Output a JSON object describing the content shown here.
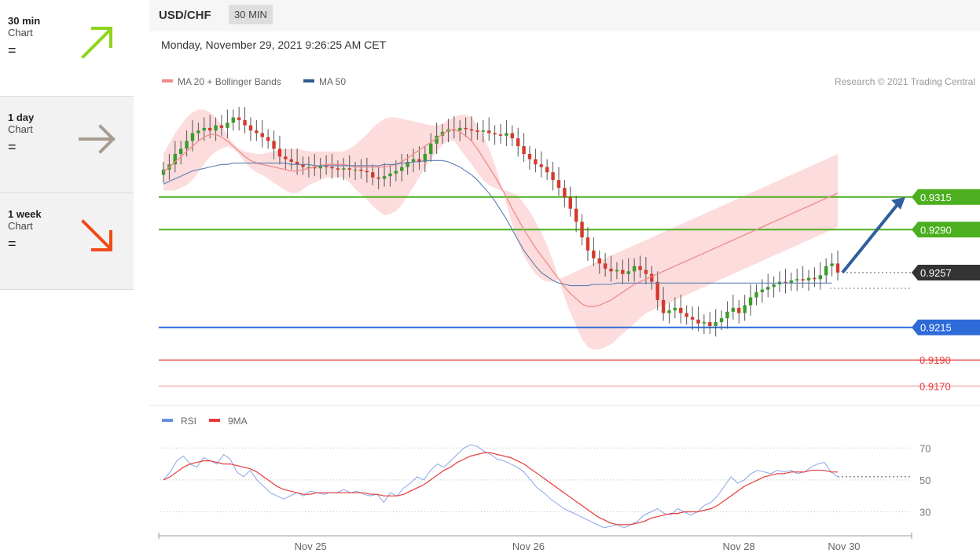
{
  "sidebar": {
    "items": [
      {
        "title": "30 min",
        "sub": "Chart",
        "eq": "=",
        "arrow": "up",
        "color": "#8fd41c"
      },
      {
        "title": "1 day",
        "sub": "Chart",
        "eq": "=",
        "arrow": "right",
        "color": "#a89c91"
      },
      {
        "title": "1 week",
        "sub": "Chart",
        "eq": "=",
        "arrow": "down",
        "color": "#f04a1a"
      }
    ]
  },
  "header": {
    "symbol": "USD/CHF",
    "timeframe": "30 MIN",
    "date": "Monday, November 29, 2021 9:26:25 AM CET"
  },
  "chart_data": {
    "type": "candlestick",
    "legend": [
      {
        "label": "MA 20 + Bollinger Bands",
        "color": "#f08c8c"
      },
      {
        "label": "MA 50",
        "color": "#2c5a8e"
      }
    ],
    "credit": "Research © 2021 Trading Central",
    "ylim": [
      0.916,
      0.9395
    ],
    "x_ticks": [
      {
        "label": "Nov 25",
        "pos": 0.2
      },
      {
        "label": "Nov 26",
        "pos": 0.49
      },
      {
        "label": "Nov 28",
        "pos": 0.77
      },
      {
        "label": "Nov 30",
        "pos": 0.91
      }
    ],
    "levels": [
      {
        "label": "0.9315",
        "value": 0.9315,
        "style": "resistance",
        "color": "#4caf1f"
      },
      {
        "label": "0.9290",
        "value": 0.929,
        "style": "resistance",
        "color": "#4caf1f"
      },
      {
        "label": "0.9257",
        "value": 0.9257,
        "style": "current",
        "color": "#333333"
      },
      {
        "label": "0.9215",
        "value": 0.9215,
        "style": "support",
        "color": "#2f6bd8"
      },
      {
        "label": "0.9190",
        "value": 0.919,
        "style": "minor",
        "color": "#e63a3a"
      },
      {
        "label": "0.9170",
        "value": 0.917,
        "style": "minor",
        "color": "#f2a3a3"
      }
    ],
    "target_arrow": {
      "from": 0.9257,
      "to": 0.9315,
      "color": "#2f5f9e"
    },
    "closes": [
      0.9336,
      0.934,
      0.9348,
      0.9352,
      0.9358,
      0.9364,
      0.9366,
      0.9368,
      0.9366,
      0.937,
      0.9368,
      0.9372,
      0.9376,
      0.9374,
      0.937,
      0.9366,
      0.9364,
      0.9361,
      0.9358,
      0.9352,
      0.9346,
      0.9344,
      0.9342,
      0.934,
      0.9338,
      0.9338,
      0.9337,
      0.9339,
      0.9338,
      0.9337,
      0.9336,
      0.9337,
      0.9336,
      0.9336,
      0.9335,
      0.9334,
      0.933,
      0.9329,
      0.9331,
      0.9333,
      0.9335,
      0.9338,
      0.9342,
      0.9344,
      0.9342,
      0.9348,
      0.9356,
      0.9362,
      0.9365,
      0.9367,
      0.9366,
      0.9368,
      0.9367,
      0.9366,
      0.9365,
      0.9366,
      0.9364,
      0.9363,
      0.9362,
      0.9364,
      0.936,
      0.9354,
      0.9348,
      0.9344,
      0.934,
      0.9338,
      0.9334,
      0.9328,
      0.9322,
      0.9315,
      0.9306,
      0.9296,
      0.9284,
      0.9274,
      0.9268,
      0.9264,
      0.926,
      0.9258,
      0.9259,
      0.9256,
      0.9258,
      0.9262,
      0.9259,
      0.9256,
      0.925,
      0.9236,
      0.9226,
      0.9228,
      0.923,
      0.9226,
      0.9223,
      0.9221,
      0.9218,
      0.9219,
      0.9216,
      0.9219,
      0.9222,
      0.9227,
      0.923,
      0.9226,
      0.9232,
      0.9238,
      0.9242,
      0.9244,
      0.9246,
      0.9248,
      0.925,
      0.9249,
      0.9251,
      0.9252,
      0.9251,
      0.9253,
      0.9252,
      0.9255,
      0.9262,
      0.9264,
      0.9257
    ],
    "ma20": [
      0.9334,
      0.9338,
      0.9342,
      0.9346,
      0.935,
      0.9354,
      0.9358,
      0.9361,
      0.9363,
      0.9363,
      0.9361,
      0.9358,
      0.9354,
      0.935,
      0.9346,
      0.9343,
      0.9341,
      0.934,
      0.9339,
      0.9338,
      0.9337,
      0.9336,
      0.9335,
      0.9335,
      0.9336,
      0.9337,
      0.9338,
      0.9339,
      0.934,
      0.934,
      0.934,
      0.934,
      0.9339,
      0.9338,
      0.9338,
      0.9338,
      0.9338,
      0.9338,
      0.9338,
      0.9339,
      0.934,
      0.9342,
      0.9345,
      0.9348,
      0.9351,
      0.9354,
      0.9357,
      0.936,
      0.9363,
      0.9366,
      0.9367,
      0.9365,
      0.9362,
      0.9358,
      0.9352,
      0.9345,
      0.9338,
      0.9331,
      0.9323,
      0.9315,
      0.9306,
      0.9298,
      0.929,
      0.9283,
      0.9276,
      0.927,
      0.9264,
      0.9258,
      0.9252,
      0.9246,
      0.9241,
      0.9237,
      0.9233,
      0.9231,
      0.9231,
      0.9232,
      0.9234,
      0.9236,
      0.9239,
      0.9242,
      0.9245,
      0.9248,
      0.925,
      0.9252,
      0.9254,
      0.9256,
      0.9258,
      0.926,
      0.9262,
      0.9264,
      0.9266,
      0.9268,
      0.927,
      0.9272,
      0.9274,
      0.9276,
      0.9278,
      0.928,
      0.9282,
      0.9284,
      0.9286,
      0.9288,
      0.929,
      0.9292,
      0.9294,
      0.9296,
      0.9298,
      0.93,
      0.9302,
      0.9304,
      0.9306,
      0.9308,
      0.931,
      0.9312,
      0.9314,
      0.9316,
      0.9318
    ],
    "bb_upper": [
      0.9348,
      0.9356,
      0.9364,
      0.937,
      0.9376,
      0.938,
      0.9382,
      0.9382,
      0.938,
      0.9376,
      0.937,
      0.9362,
      0.9356,
      0.9352,
      0.935,
      0.9349,
      0.9348,
      0.9348,
      0.9349,
      0.935,
      0.9351,
      0.9352,
      0.9352,
      0.9352,
      0.9351,
      0.935,
      0.935,
      0.935,
      0.935,
      0.935,
      0.935,
      0.935,
      0.9352,
      0.9355,
      0.9359,
      0.9363,
      0.9368,
      0.9372,
      0.9375,
      0.9376,
      0.9376,
      0.9375,
      0.9374,
      0.9373,
      0.9372,
      0.9371,
      0.937,
      0.937,
      0.9371,
      0.9374,
      0.9376,
      0.9378,
      0.9378,
      0.9376,
      0.937,
      0.9362,
      0.9352,
      0.934,
      0.9326,
      0.931,
      0.9294,
      0.928,
      0.927,
      0.9262,
      0.9256,
      0.9252,
      0.925,
      0.925,
      0.9252,
      0.9254,
      0.9256,
      0.9258,
      0.926,
      0.9262,
      0.9264,
      0.9266,
      0.9268,
      0.927,
      0.9272,
      0.9274,
      0.9276,
      0.9278,
      0.928,
      0.9282,
      0.9284,
      0.9286,
      0.9288,
      0.929,
      0.9292,
      0.9294,
      0.9296,
      0.9298,
      0.93,
      0.9302,
      0.9304,
      0.9306,
      0.9308,
      0.931,
      0.9312,
      0.9314,
      0.9316,
      0.9318,
      0.932,
      0.9322,
      0.9324,
      0.9326,
      0.9328,
      0.933,
      0.9332,
      0.9334,
      0.9336,
      0.9338,
      0.934,
      0.9342,
      0.9344,
      0.9346,
      0.9348
    ],
    "bb_lower": [
      0.932,
      0.932,
      0.932,
      0.9322,
      0.9324,
      0.9328,
      0.9334,
      0.934,
      0.9346,
      0.935,
      0.9352,
      0.9354,
      0.9352,
      0.9348,
      0.9342,
      0.9337,
      0.9334,
      0.9332,
      0.9329,
      0.9326,
      0.9323,
      0.932,
      0.9318,
      0.9318,
      0.9321,
      0.9324,
      0.9326,
      0.9328,
      0.933,
      0.933,
      0.933,
      0.933,
      0.9326,
      0.9321,
      0.9317,
      0.9313,
      0.9308,
      0.9304,
      0.9301,
      0.9302,
      0.9304,
      0.9309,
      0.9316,
      0.9323,
      0.933,
      0.9337,
      0.9344,
      0.935,
      0.9355,
      0.9358,
      0.9358,
      0.9352,
      0.9346,
      0.934,
      0.9334,
      0.9328,
      0.9324,
      0.9322,
      0.932,
      0.932,
      0.9318,
      0.9316,
      0.931,
      0.9304,
      0.9296,
      0.9288,
      0.9278,
      0.9266,
      0.9252,
      0.9238,
      0.9226,
      0.9216,
      0.9206,
      0.92,
      0.9198,
      0.9198,
      0.92,
      0.9202,
      0.9206,
      0.921,
      0.9214,
      0.9218,
      0.9222,
      0.9226,
      0.9228,
      0.923,
      0.9232,
      0.9234,
      0.9236,
      0.9238,
      0.924,
      0.9242,
      0.9244,
      0.9246,
      0.9248,
      0.925,
      0.9252,
      0.9254,
      0.9256,
      0.9258,
      0.926,
      0.9262,
      0.9264,
      0.9266,
      0.9268,
      0.927,
      0.9272,
      0.9274,
      0.9276,
      0.9278,
      0.928,
      0.9282,
      0.9284,
      0.9286,
      0.9288,
      0.929,
      0.9292
    ],
    "ma50": [
      0.9325,
      0.9327,
      0.9329,
      0.9331,
      0.9333,
      0.9335,
      0.9336,
      0.9337,
      0.9338,
      0.9339,
      0.934,
      0.934,
      0.9341,
      0.9341,
      0.9341,
      0.9341,
      0.9341,
      0.9341,
      0.9341,
      0.9341,
      0.9341,
      0.9341,
      0.934,
      0.934,
      0.934,
      0.934,
      0.9339,
      0.9339,
      0.9339,
      0.9339,
      0.9339,
      0.9339,
      0.9339,
      0.9339,
      0.9339,
      0.9339,
      0.9339,
      0.9339,
      0.934,
      0.934,
      0.934,
      0.9341,
      0.9341,
      0.9342,
      0.9342,
      0.9343,
      0.9343,
      0.9343,
      0.9343,
      0.9342,
      0.934,
      0.9338,
      0.9335,
      0.9332,
      0.9328,
      0.9323,
      0.9318,
      0.9312,
      0.9305,
      0.9298,
      0.929,
      0.9282,
      0.9274,
      0.9268,
      0.9262,
      0.9257,
      0.9254,
      0.9251,
      0.9249,
      0.9248,
      0.9247,
      0.9247,
      0.9247,
      0.9247,
      0.9248,
      0.9248,
      0.9248,
      0.9248,
      0.9249,
      0.9249,
      0.9249,
      0.9249,
      0.9249,
      0.9249,
      0.9249,
      0.9249,
      0.9249,
      0.9249,
      0.9249,
      0.9249,
      0.9249,
      0.9249,
      0.9249,
      0.9249,
      0.9249,
      0.9249,
      0.9249,
      0.9249,
      0.9249,
      0.9249,
      0.9249,
      0.9249,
      0.9249,
      0.9249,
      0.9249,
      0.9249,
      0.9249,
      0.9249,
      0.9249,
      0.9249,
      0.9249,
      0.9249,
      0.9249,
      0.9249,
      0.9249,
      0.9249
    ],
    "rsi_panel": {
      "legend": [
        {
          "label": "RSI",
          "color": "#6a8fe0"
        },
        {
          "label": "9MA",
          "color": "#e63a3a"
        }
      ],
      "ylim": [
        15,
        80
      ],
      "gridlines": [
        70,
        50,
        30
      ],
      "y_tick_labels": [
        "70",
        "50",
        "30"
      ],
      "rsi": [
        50,
        55,
        62,
        65,
        60,
        58,
        64,
        62,
        60,
        66,
        63,
        55,
        52,
        56,
        50,
        46,
        42,
        40,
        38,
        40,
        42,
        40,
        43,
        42,
        41,
        42,
        42,
        44,
        42,
        43,
        41,
        40,
        41,
        36,
        42,
        40,
        45,
        48,
        52,
        50,
        56,
        60,
        58,
        62,
        66,
        70,
        72,
        71,
        68,
        66,
        63,
        62,
        60,
        58,
        55,
        50,
        45,
        42,
        38,
        35,
        32,
        30,
        28,
        26,
        24,
        22,
        20,
        21,
        22,
        20,
        22,
        24,
        28,
        30,
        32,
        29,
        28,
        32,
        30,
        28,
        30,
        34,
        36,
        40,
        46,
        52,
        48,
        50,
        54,
        56,
        55,
        54,
        56,
        55,
        56,
        54,
        55,
        58,
        60,
        61,
        55,
        52
      ],
      "rsi_ma": [
        50,
        52,
        55,
        58,
        60,
        61,
        62,
        62,
        61,
        60,
        60,
        59,
        58,
        57,
        55,
        52,
        49,
        46,
        44,
        43,
        42,
        41,
        41,
        42,
        42,
        42,
        42,
        42,
        42,
        42,
        42,
        41,
        41,
        40,
        40,
        40,
        41,
        43,
        45,
        47,
        50,
        53,
        56,
        58,
        61,
        63,
        65,
        66,
        67,
        67,
        66,
        65,
        64,
        62,
        60,
        57,
        54,
        51,
        48,
        45,
        42,
        39,
        36,
        33,
        30,
        27,
        25,
        23,
        22,
        22,
        22,
        23,
        24,
        26,
        27,
        28,
        29,
        29,
        30,
        30,
        30,
        31,
        32,
        34,
        37,
        40,
        43,
        46,
        48,
        50,
        52,
        53,
        54,
        54,
        55,
        55,
        55,
        56,
        56,
        56,
        55,
        55
      ],
      "last_level": 52
    }
  }
}
